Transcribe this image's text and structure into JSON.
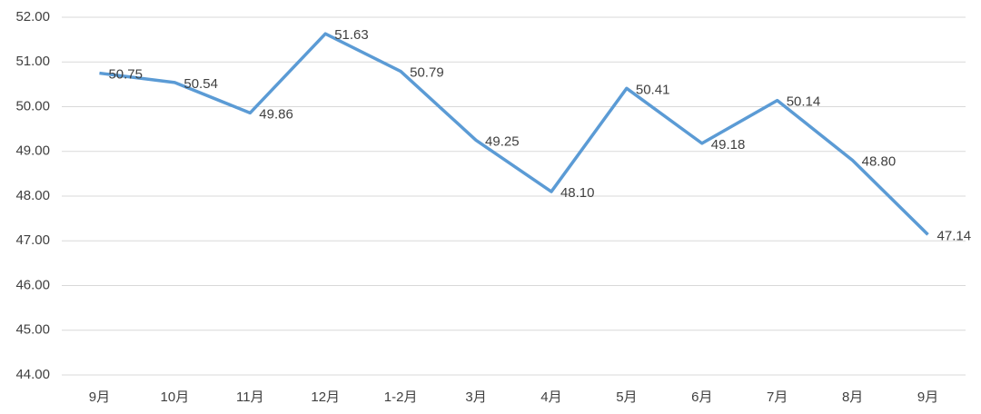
{
  "chart_data": {
    "type": "line",
    "categories": [
      "9月",
      "10月",
      "11月",
      "12月",
      "1-2月",
      "3月",
      "4月",
      "5月",
      "6月",
      "7月",
      "8月",
      "9月"
    ],
    "values": [
      50.75,
      50.54,
      49.86,
      51.63,
      50.79,
      49.25,
      48.1,
      50.41,
      49.18,
      50.14,
      48.8,
      47.14
    ],
    "value_labels": [
      "50.75",
      "50.54",
      "49.86",
      "51.63",
      "50.79",
      "49.25",
      "48.10",
      "50.41",
      "49.18",
      "50.14",
      "48.80",
      "47.14"
    ],
    "color": "#5b9bd5",
    "ylim": [
      44,
      52
    ],
    "yticks": [
      {
        "value": 44,
        "label": "44.00"
      },
      {
        "value": 45,
        "label": "45.00"
      },
      {
        "value": 46,
        "label": "46.00"
      },
      {
        "value": 47,
        "label": "47.00"
      },
      {
        "value": 48,
        "label": "48.00"
      },
      {
        "value": 49,
        "label": "49.00"
      },
      {
        "value": 50,
        "label": "50.00"
      },
      {
        "value": 51,
        "label": "51.00"
      },
      {
        "value": 52,
        "label": "52.00"
      }
    ],
    "grid": true
  }
}
